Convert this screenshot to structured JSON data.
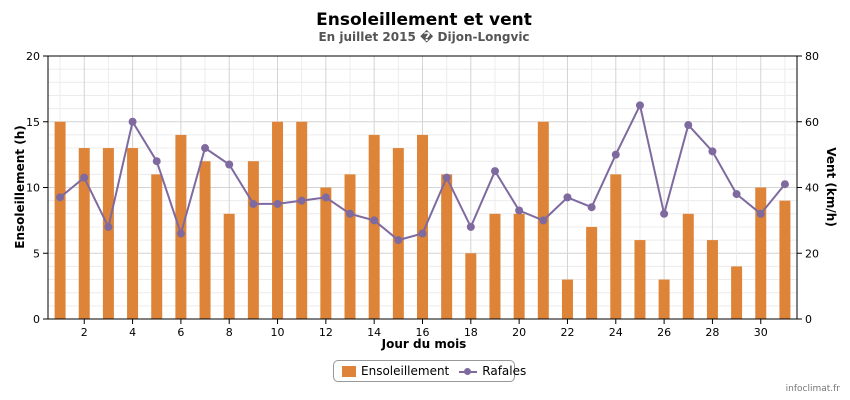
{
  "chart_data": {
    "type": "bar",
    "title": "Ensoleillement et vent",
    "subtitle": "En juillet 2015 � Dijon-Longvic",
    "xlabel": "Jour du mois",
    "ylabel_left": "Ensoleillement (h)",
    "ylabel_right": "Vent (km/h)",
    "ylim_left": [
      0,
      20
    ],
    "ylim_right": [
      0,
      80
    ],
    "yticks_left": [
      "0",
      "5",
      "10",
      "15",
      "20"
    ],
    "yticks_right": [
      "0",
      "20",
      "40",
      "60",
      "80"
    ],
    "xticks": [
      "2",
      "4",
      "6",
      "8",
      "10",
      "12",
      "14",
      "16",
      "18",
      "20",
      "22",
      "24",
      "26",
      "28",
      "30"
    ],
    "grid": true,
    "legend_position": "bottom",
    "x": [
      1,
      2,
      3,
      4,
      5,
      6,
      7,
      8,
      9,
      10,
      11,
      12,
      13,
      14,
      15,
      16,
      17,
      18,
      19,
      20,
      21,
      22,
      23,
      24,
      25,
      26,
      27,
      28,
      29,
      30,
      31
    ],
    "series": [
      {
        "name": "Ensoleillement",
        "type": "bar",
        "axis": "left",
        "color": "#dd8439",
        "values": [
          15,
          13,
          13,
          13,
          11,
          14,
          12,
          8,
          12,
          15,
          15,
          10,
          11,
          14,
          13,
          14,
          11,
          5,
          8,
          8,
          15,
          3,
          7,
          11,
          6,
          3,
          8,
          6,
          4,
          10,
          9
        ]
      },
      {
        "name": "Rafales",
        "type": "line",
        "axis": "right",
        "color": "#7f6aa0",
        "values": [
          37,
          43,
          28,
          60,
          48,
          26,
          52,
          47,
          35,
          35,
          36,
          37,
          32,
          30,
          24,
          26,
          43,
          28,
          45,
          33,
          30,
          37,
          34,
          50,
          65,
          32,
          59,
          51,
          38,
          32,
          41
        ]
      }
    ]
  },
  "legend": {
    "bar_label": "Ensoleillement",
    "line_label": "Rafales"
  },
  "credit": "infoclimat.fr"
}
